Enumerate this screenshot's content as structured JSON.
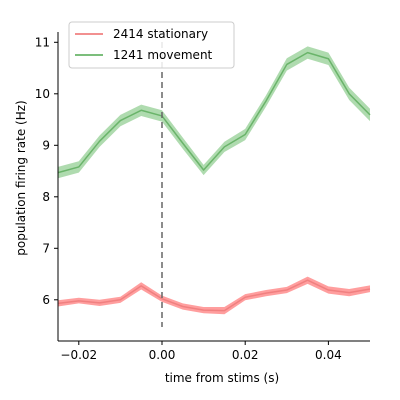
{
  "chart_data": {
    "type": "line",
    "xlabel": "time from stims (s)",
    "ylabel": "population firing rate (Hz)",
    "xlim": [
      -0.025,
      0.05
    ],
    "ylim": [
      5.2,
      11.2
    ],
    "xticks": [
      -0.02,
      0.0,
      0.02,
      0.04
    ],
    "xtick_labels": [
      "−0.02",
      "0.00",
      "0.02",
      "0.04"
    ],
    "yticks": [
      6,
      7,
      8,
      9,
      10,
      11
    ],
    "ytick_labels": [
      "6",
      "7",
      "8",
      "9",
      "10",
      "11"
    ],
    "legend_position": "top-left",
    "annotations": [
      {
        "type": "vline",
        "x": 0.0,
        "style": "dashed",
        "color": "#666666"
      }
    ],
    "x": [
      -0.025,
      -0.02,
      -0.015,
      -0.01,
      -0.005,
      0.0,
      0.005,
      0.01,
      0.015,
      0.02,
      0.025,
      0.03,
      0.035,
      0.04,
      0.045,
      0.05
    ],
    "series": [
      {
        "name": "2414 stationary",
        "color": "#f08080",
        "band_color": "#ff0000",
        "values": [
          5.93,
          5.98,
          5.94,
          6.0,
          6.27,
          6.02,
          5.87,
          5.8,
          5.79,
          6.05,
          6.13,
          6.19,
          6.38,
          6.19,
          6.14,
          6.21
        ],
        "lower": [
          5.87,
          5.93,
          5.88,
          5.94,
          6.2,
          5.96,
          5.81,
          5.74,
          5.72,
          5.99,
          6.07,
          6.13,
          6.31,
          6.12,
          6.07,
          6.15
        ],
        "upper": [
          5.99,
          6.04,
          6.0,
          6.06,
          6.34,
          6.08,
          5.93,
          5.86,
          5.86,
          6.11,
          6.19,
          6.25,
          6.45,
          6.26,
          6.21,
          6.28
        ]
      },
      {
        "name": "1241 movement",
        "color": "#6ab46a",
        "band_color": "#2ca02c",
        "values": [
          8.47,
          8.58,
          9.08,
          9.48,
          9.68,
          9.57,
          9.04,
          8.52,
          8.97,
          9.21,
          9.86,
          10.57,
          10.8,
          10.68,
          10.0,
          9.59
        ],
        "lower": [
          8.36,
          8.47,
          8.97,
          9.37,
          9.57,
          9.46,
          8.93,
          8.42,
          8.87,
          9.1,
          9.75,
          10.45,
          10.68,
          10.56,
          9.88,
          9.47
        ],
        "upper": [
          8.58,
          8.69,
          9.19,
          9.59,
          9.79,
          9.68,
          9.15,
          8.62,
          9.07,
          9.32,
          9.97,
          10.69,
          10.92,
          10.8,
          10.12,
          9.71
        ]
      }
    ]
  }
}
